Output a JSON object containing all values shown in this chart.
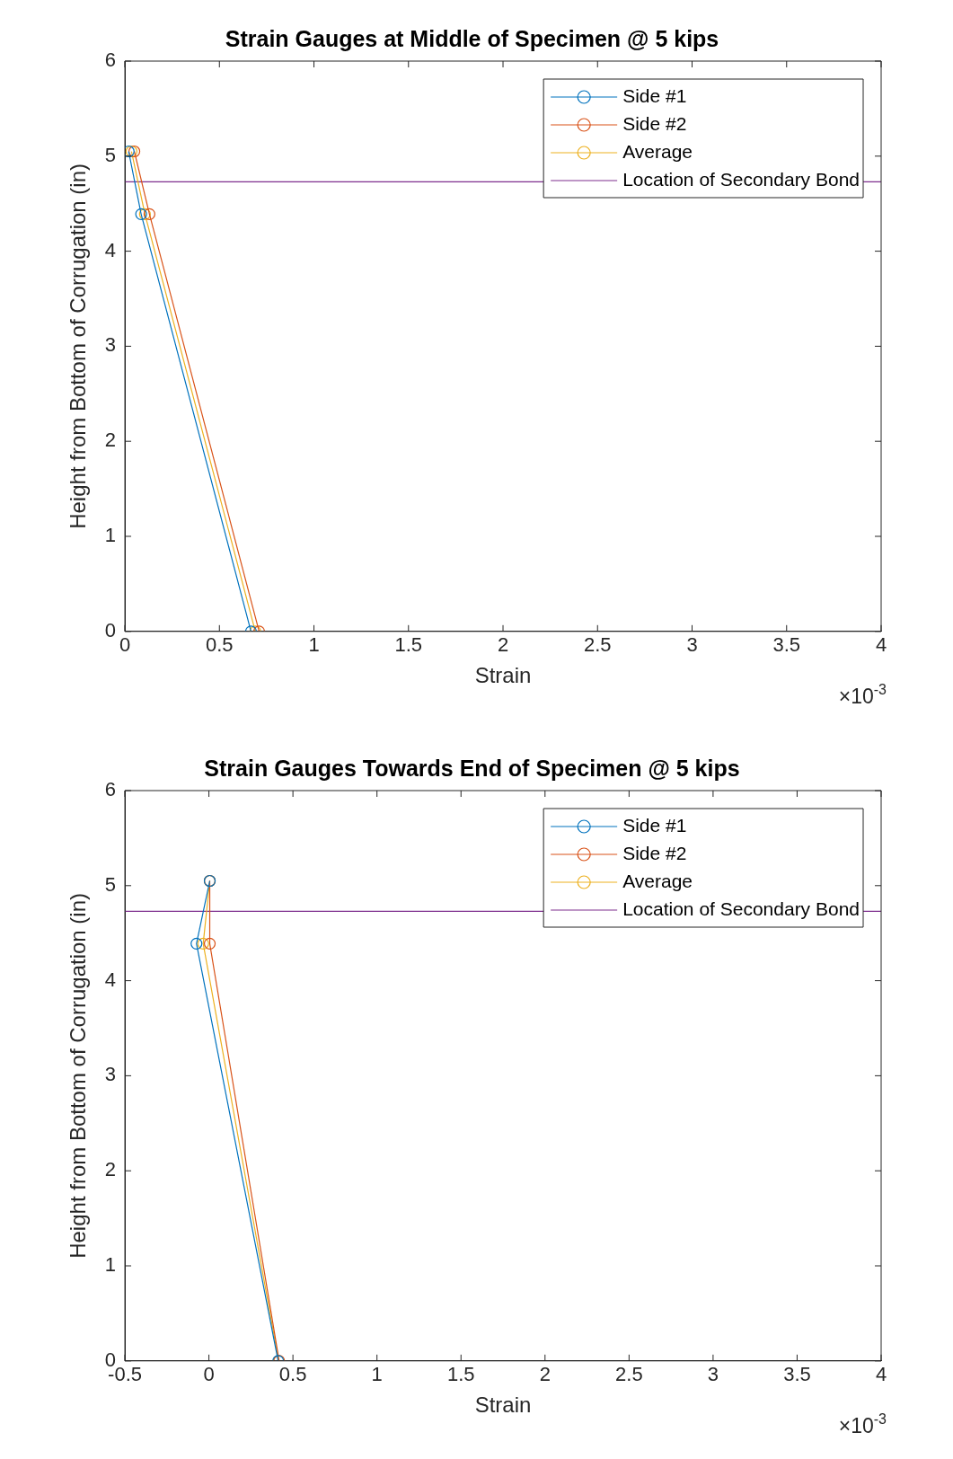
{
  "chart_data": [
    {
      "type": "line",
      "title": "Strain Gauges at Middle of Specimen @ 5 kips",
      "xlabel": "Strain",
      "ylabel": "Height from Bottom of Corrugation (in)",
      "marker": "circle",
      "line_style": "solid",
      "grid": false,
      "legend": "top right",
      "xlim": [
        0,
        4
      ],
      "xticks": [
        0,
        0.5,
        1,
        1.5,
        2,
        2.5,
        3,
        3.5,
        4
      ],
      "ylim": [
        0,
        6
      ],
      "yticks": [
        0,
        1,
        2,
        3,
        4,
        5,
        6
      ],
      "series": [
        {
          "name": "Side #1",
          "color": "#0072bd",
          "x": [
            0.02,
            0.086,
            0.667
          ],
          "values": [
            5.05,
            4.39,
            0
          ]
        },
        {
          "name": "Side #2",
          "color": "#d95319",
          "x": [
            0.05,
            0.13,
            0.71
          ],
          "values": [
            5.05,
            4.39,
            0
          ]
        },
        {
          "name": "Average",
          "color": "#edb120",
          "x": [
            0.035,
            0.106,
            0.69
          ],
          "values": [
            5.05,
            4.39,
            0
          ]
        }
      ],
      "ref_lines": [
        {
          "axis": "y",
          "value": 4.73,
          "label": "Location of Secondary Bond",
          "color": "#7e2f8e"
        }
      ],
      "annotations": [
        "×10$^{-3}$"
      ]
    },
    {
      "type": "line",
      "title": "Strain Gauges Towards End of Specimen @ 5 kips",
      "xlabel": "Strain",
      "ylabel": "Height from Bottom of Corrugation (in)",
      "marker": "circle",
      "line_style": "solid",
      "grid": false,
      "legend": "top right",
      "xlim": [
        -0.5,
        4
      ],
      "xticks": [
        -0.5,
        0,
        0.5,
        1,
        1.5,
        2,
        2.5,
        3,
        3.5,
        4
      ],
      "ylim": [
        0,
        6
      ],
      "yticks": [
        0,
        1,
        2,
        3,
        4,
        5,
        6
      ],
      "series": [
        {
          "name": "Side #1",
          "color": "#0072bd",
          "x": [
            0.005,
            -0.074,
            0.412
          ],
          "values": [
            5.05,
            4.39,
            0
          ]
        },
        {
          "name": "Side #2",
          "color": "#d95319",
          "x": [
            0.005,
            0.005,
            0.418
          ],
          "values": [
            5.05,
            4.39,
            0
          ]
        },
        {
          "name": "Average",
          "color": "#edb120",
          "x": [
            0.005,
            -0.034,
            0.415
          ],
          "values": [
            5.05,
            4.39,
            0
          ]
        }
      ],
      "ref_lines": [
        {
          "axis": "y",
          "value": 4.73,
          "label": "Location of Secondary Bond",
          "color": "#7e2f8e"
        }
      ],
      "annotations": [
        "×10$^{-3}$"
      ]
    }
  ]
}
